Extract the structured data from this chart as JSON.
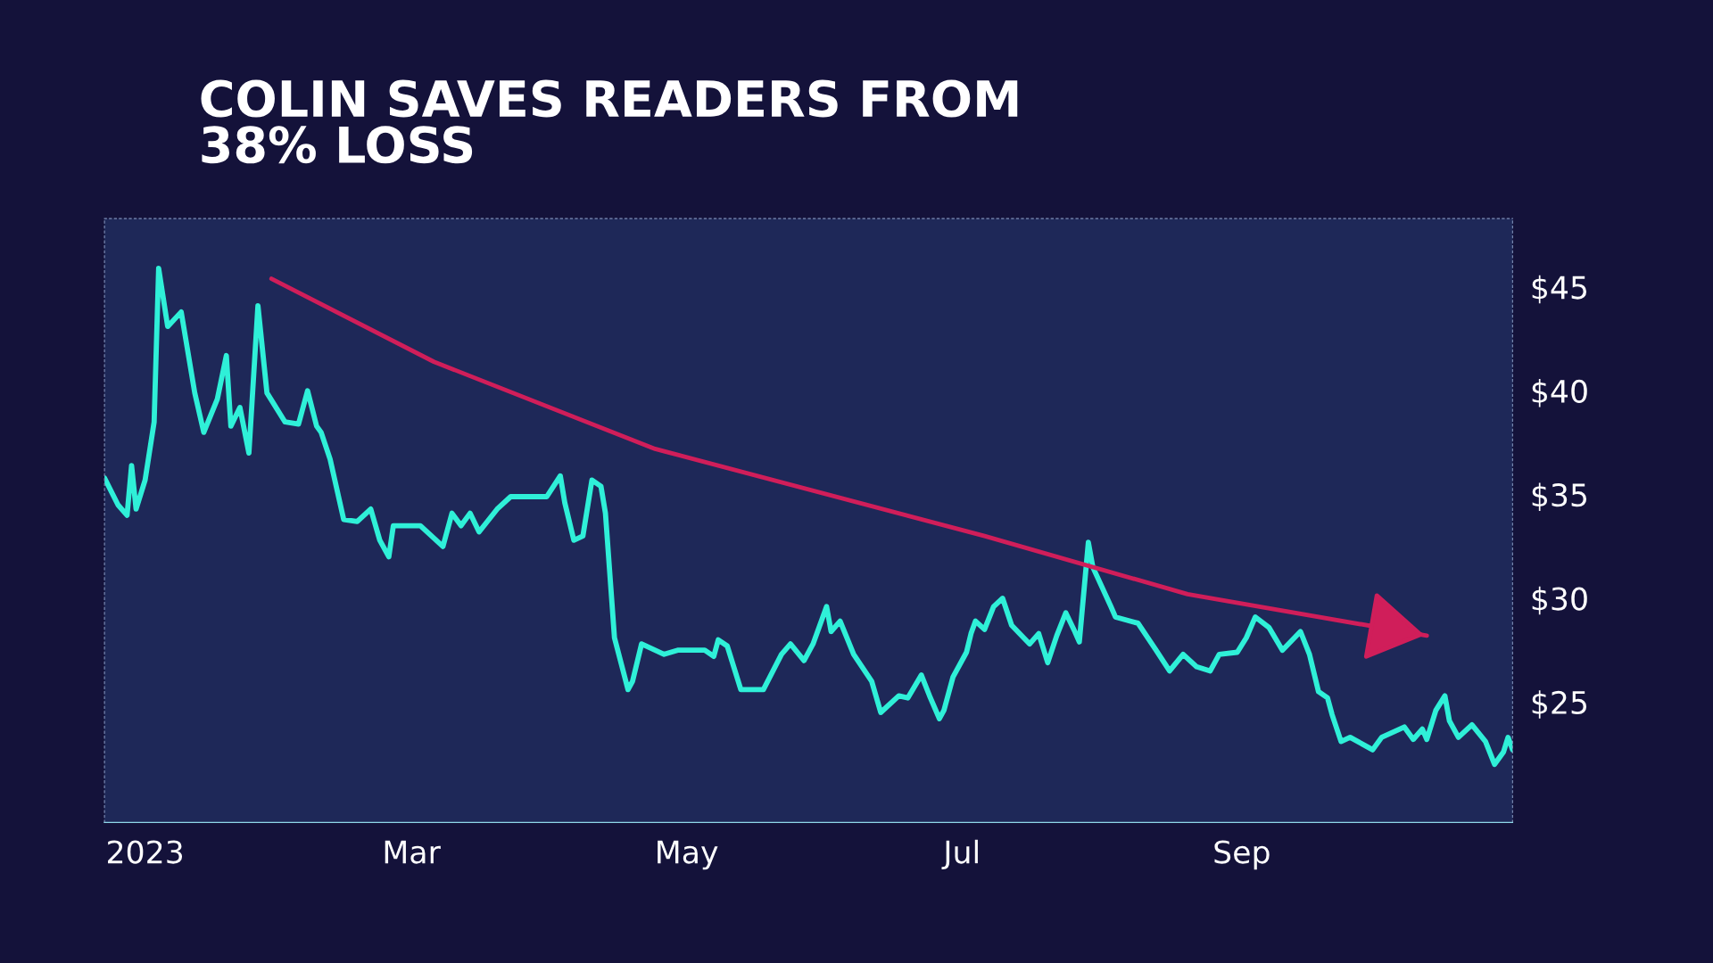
{
  "chart_data": {
    "type": "line",
    "title": "COLIN SAVES READERS FROM 38% LOSS",
    "x": [
      "2022-12-23",
      "2022-12-26",
      "2022-12-28",
      "2022-12-29",
      "2022-12-30",
      "2023-01-01",
      "2023-01-03",
      "2023-01-04",
      "2023-01-06",
      "2023-01-09",
      "2023-01-12",
      "2023-01-14",
      "2023-01-17",
      "2023-01-19",
      "2023-01-20",
      "2023-01-22",
      "2023-01-24",
      "2023-01-26",
      "2023-01-28",
      "2023-02-01",
      "2023-02-04",
      "2023-02-06",
      "2023-02-08",
      "2023-02-09",
      "2023-02-11",
      "2023-02-14",
      "2023-02-17",
      "2023-02-20",
      "2023-02-22",
      "2023-02-24",
      "2023-02-25",
      "2023-03-03",
      "2023-03-08",
      "2023-03-10",
      "2023-03-12",
      "2023-03-14",
      "2023-03-16",
      "2023-03-20",
      "2023-03-23",
      "2023-03-31",
      "2023-04-03",
      "2023-04-04",
      "2023-04-06",
      "2023-04-08",
      "2023-04-10",
      "2023-04-12",
      "2023-04-13",
      "2023-04-15",
      "2023-04-18",
      "2023-04-19",
      "2023-04-21",
      "2023-04-26",
      "2023-04-29",
      "2023-05-05",
      "2023-05-07",
      "2023-05-08",
      "2023-05-10",
      "2023-05-13",
      "2023-05-18",
      "2023-05-22",
      "2023-05-24",
      "2023-05-27",
      "2023-05-29",
      "2023-06-01",
      "2023-06-02",
      "2023-06-04",
      "2023-06-07",
      "2023-06-11",
      "2023-06-13",
      "2023-06-17",
      "2023-06-19",
      "2023-06-22",
      "2023-06-24",
      "2023-06-26",
      "2023-06-27",
      "2023-06-29",
      "2023-07-02",
      "2023-07-03",
      "2023-07-04",
      "2023-07-06",
      "2023-07-08",
      "2023-07-10",
      "2023-07-12",
      "2023-07-16",
      "2023-07-18",
      "2023-07-20",
      "2023-07-22",
      "2023-07-24",
      "2023-07-26",
      "2023-07-27",
      "2023-07-29",
      "2023-07-30",
      "2023-08-03",
      "2023-08-04",
      "2023-08-09",
      "2023-08-13",
      "2023-08-16",
      "2023-08-19",
      "2023-08-22",
      "2023-08-25",
      "2023-08-27",
      "2023-08-31",
      "2023-09-02",
      "2023-09-04",
      "2023-09-07",
      "2023-09-10",
      "2023-09-14",
      "2023-09-16",
      "2023-09-18",
      "2023-09-20",
      "2023-09-21",
      "2023-09-23",
      "2023-09-25",
      "2023-09-30",
      "2023-10-02",
      "2023-10-07",
      "2023-10-09",
      "2023-10-11",
      "2023-10-12",
      "2023-10-14",
      "2023-10-16",
      "2023-10-17",
      "2023-10-19",
      "2023-10-22",
      "2023-10-25",
      "2023-10-27",
      "2023-10-29",
      "2023-10-30",
      "2023-10-31"
    ],
    "series": [
      {
        "color": "#2ff0d8",
        "values": [
          35.8,
          34.5,
          34.0,
          36.4,
          34.3,
          35.7,
          38.5,
          45.9,
          43.1,
          43.8,
          39.9,
          38.0,
          39.6,
          41.7,
          38.3,
          39.2,
          37.0,
          44.1,
          39.9,
          38.5,
          38.4,
          40.0,
          38.3,
          38.0,
          36.7,
          33.8,
          33.7,
          34.3,
          32.8,
          32.0,
          33.5,
          33.5,
          32.5,
          34.1,
          33.5,
          34.1,
          33.2,
          34.3,
          34.9,
          34.9,
          35.9,
          34.6,
          32.8,
          33.0,
          35.7,
          35.4,
          34.1,
          28.1,
          25.6,
          26.0,
          27.8,
          27.3,
          27.5,
          27.5,
          27.2,
          28.0,
          27.7,
          25.6,
          25.6,
          27.3,
          27.8,
          27.0,
          27.8,
          29.6,
          28.4,
          28.9,
          27.3,
          26.0,
          24.5,
          25.3,
          25.2,
          26.3,
          25.2,
          24.2,
          24.6,
          26.2,
          27.4,
          28.3,
          28.9,
          28.5,
          29.6,
          30.0,
          28.7,
          27.8,
          28.3,
          26.9,
          28.2,
          29.3,
          28.4,
          27.9,
          32.7,
          31.5,
          29.6,
          29.1,
          28.8,
          27.5,
          26.5,
          27.3,
          26.7,
          26.5,
          27.3,
          27.4,
          28.1,
          29.1,
          28.6,
          27.5,
          28.4,
          27.3,
          25.5,
          25.2,
          24.4,
          23.1,
          23.3,
          22.7,
          23.3,
          23.8,
          23.2,
          23.7,
          23.2,
          24.6,
          25.3,
          24.1,
          23.3,
          23.9,
          23.1,
          22.0,
          22.6,
          23.3,
          22.7
        ]
      },
      {
        "type": "line",
        "color": "#d01e5a",
        "x": [
          "2023-01-29",
          "2023-03-06",
          "2023-04-24",
          "2023-07-06",
          "2023-08-20",
          "2023-10-12"
        ],
        "values": [
          45.4,
          41.4,
          37.2,
          33.0,
          30.2,
          28.2
        ]
      }
    ],
    "xlim": [
      "2022-12-23",
      "2023-10-31"
    ],
    "xticks": [
      {
        "value": "2023-01-01",
        "label": "2023"
      },
      {
        "value": "2023-03-01",
        "label": "Mar"
      },
      {
        "value": "2023-05-01",
        "label": "May"
      },
      {
        "value": "2023-07-01",
        "label": "Jul"
      },
      {
        "value": "2023-09-01",
        "label": "Sep"
      }
    ],
    "ylim": [
      19.2,
      48.3
    ],
    "yticks": [
      {
        "value": 25,
        "label": "$25"
      },
      {
        "value": 30,
        "label": "$30"
      },
      {
        "value": 35,
        "label": "$35"
      },
      {
        "value": 40,
        "label": "$40"
      },
      {
        "value": 45,
        "label": "$45"
      }
    ],
    "grid": false,
    "legend": false,
    "marker": "none",
    "line_style": "solid"
  }
}
